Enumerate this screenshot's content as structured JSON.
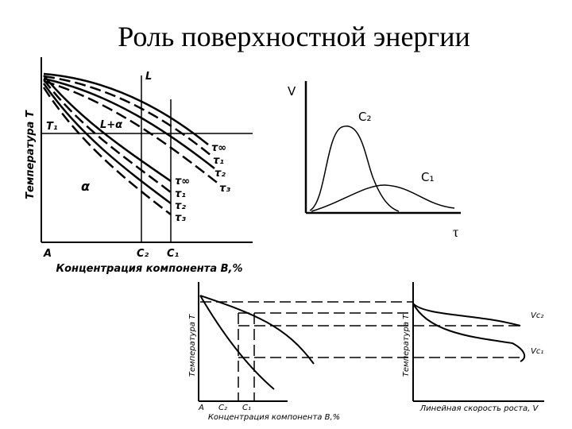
{
  "header": {
    "title": "Роль поверхностной энергии"
  },
  "diagram_phase": {
    "y_label": "Температура T",
    "liquid": "L",
    "t1": "T₁",
    "two_phase": "L+α",
    "solid": "α",
    "upper_curves": [
      "τ∞",
      "τ₁",
      "τ₂",
      "τ₃"
    ],
    "lower_curves": [
      "τ∞",
      "τ₁",
      "τ₂",
      "τ₃"
    ],
    "origin": "A",
    "c2": "C₂",
    "c1": "C₁",
    "x_label": "Концентрация компонента B,%"
  },
  "diagram_rate": {
    "y_label": "V",
    "curve_c2": "C₂",
    "curve_c1": "C₁",
    "x_label": "τ"
  },
  "diagram_growth": {
    "left_y_label": "Температура T",
    "origin": "A",
    "c2": "C₂",
    "c1": "C₁",
    "left_x_label": "Концентрация компонента B,%",
    "right_y_label": "Температура T",
    "right_x_label": "Линейная скорость роста, V",
    "curve_c2": "Vc₂",
    "curve_c1": "Vc₁"
  }
}
